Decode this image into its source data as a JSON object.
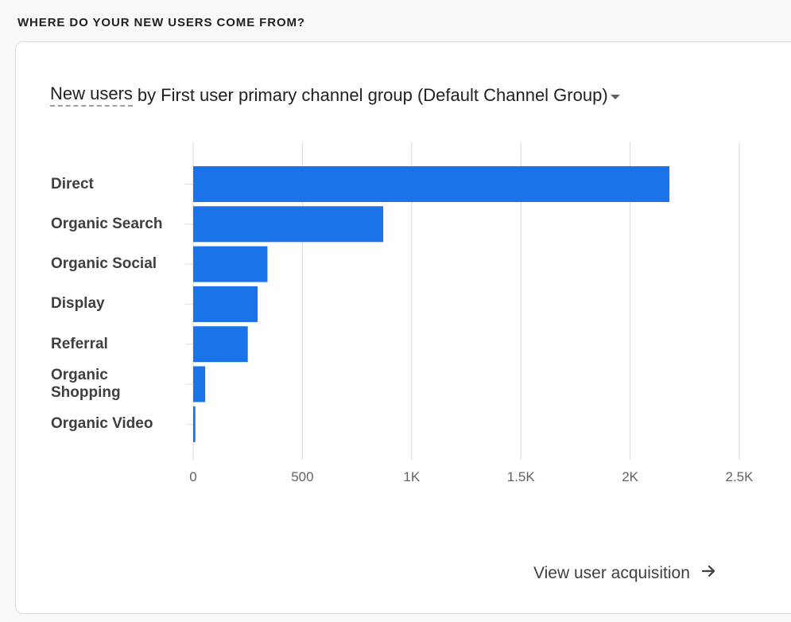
{
  "section": {
    "heading": "WHERE DO YOUR NEW USERS COME FROM?"
  },
  "card": {
    "metric": "New users",
    "connector": "by",
    "dimension": "First user primary channel group (Default Channel Group)",
    "dropdown_icon": "caret-down-icon",
    "link_label": "View user acquisition",
    "link_icon": "arrow-right-icon"
  },
  "colors": {
    "bar": "#1a73e8",
    "grid": "#e0e0e0",
    "text": "#3c4043"
  },
  "chart_data": {
    "type": "bar",
    "orientation": "horizontal",
    "categories": [
      "Direct",
      "Organic Search",
      "Organic Social",
      "Display",
      "Referral",
      "Organic Shopping",
      "Organic Video"
    ],
    "category_labels": [
      [
        "Direct"
      ],
      [
        "Organic Search"
      ],
      [
        "Organic Social"
      ],
      [
        "Display"
      ],
      [
        "Referral"
      ],
      [
        "Organic",
        "Shopping"
      ],
      [
        "Organic Video"
      ]
    ],
    "values": [
      2180,
      870,
      340,
      295,
      250,
      55,
      10
    ],
    "xlim": [
      0,
      2500
    ],
    "xticks": [
      0,
      500,
      1000,
      1500,
      2000,
      2500
    ],
    "xtick_labels": [
      "0",
      "500",
      "1K",
      "1.5K",
      "2K",
      "2.5K"
    ],
    "grid": true,
    "title": "New users by First user primary channel group (Default Channel Group)",
    "xlabel": "",
    "ylabel": ""
  }
}
